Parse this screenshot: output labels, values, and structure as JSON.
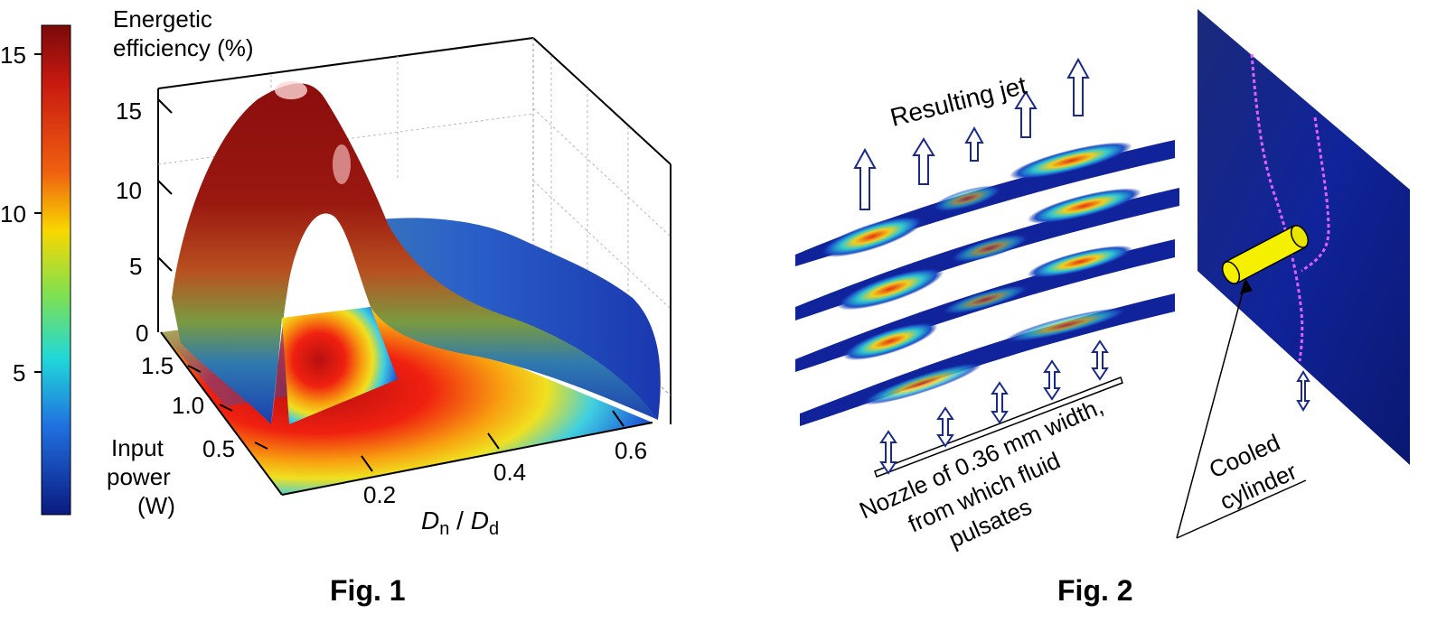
{
  "figure1": {
    "caption": "Fig. 1",
    "z_axis_label_line1": "Energetic",
    "z_axis_label_line2": "efficiency (%)",
    "y_axis_label_line1": "Input",
    "y_axis_label_line2": "power",
    "y_axis_label_line3": "(W)",
    "x_axis_label_main": "D",
    "x_axis_label_sub1": "n",
    "x_axis_label_sep": " / ",
    "x_axis_label_main2": "D",
    "x_axis_label_sub2": "d",
    "colorbar_ticks": [
      "15",
      "10",
      "5"
    ],
    "z_ticks": [
      "15",
      "10",
      "5",
      "0"
    ],
    "y_ticks": [
      "1.5",
      "1.0",
      "0.5"
    ],
    "x_ticks": [
      "0.2",
      "0.4",
      "0.6"
    ]
  },
  "figure2": {
    "caption": "Fig. 2",
    "jet_label": "Resulting jet",
    "nozzle_label_line1": "Nozzle of 0.36 mm width,",
    "nozzle_label_line2": "from which fluid",
    "nozzle_label_line3": "pulsates",
    "cylinder_label_line1": "Cooled",
    "cylinder_label_line2": "cylinder"
  },
  "colors": {
    "surface_peak": "#8b0d0d",
    "surface_mid": "#e8c21a",
    "surface_low": "#1b3fb0",
    "slice_background": "#10239a",
    "arrow_outline": "#1a2a8a",
    "cylinder": "#f4f000",
    "laser_trace": "#e060ff"
  }
}
